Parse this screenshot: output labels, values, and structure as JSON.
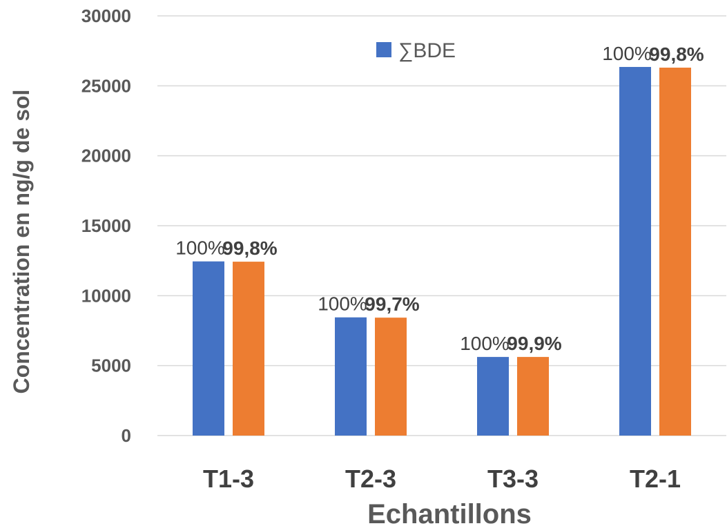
{
  "chart_data": {
    "type": "bar",
    "title": "",
    "xlabel": "Echantillons",
    "ylabel": "Concentration en ng/g de sol",
    "categories": [
      "T1-3",
      "T2-3",
      "T3-3",
      "T2-1"
    ],
    "ylim": [
      0,
      30000
    ],
    "yticks": [
      0,
      5000,
      10000,
      15000,
      20000,
      25000,
      30000
    ],
    "grid": true,
    "legend": {
      "position": "top-center",
      "entries": [
        "∑BDE"
      ]
    },
    "series": [
      {
        "name": "∑BDE",
        "color": "#4472C4",
        "values": [
          12450,
          8450,
          5620,
          26350
        ],
        "labels": [
          "100%",
          "100%",
          "100%",
          "100%"
        ]
      },
      {
        "color": "#ED7D31",
        "values": [
          12430,
          8430,
          5620,
          26300
        ],
        "labels": [
          "99,8%",
          "99,7%",
          "99,9%",
          "99,8%"
        ]
      }
    ]
  }
}
